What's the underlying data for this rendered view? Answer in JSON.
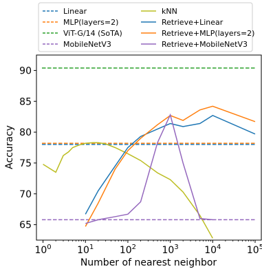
{
  "chart_data": {
    "type": "line",
    "xlabel": "Number of nearest neighbor",
    "ylabel": "Accuracy",
    "xscale": "log",
    "xlim": [
      0.7,
      140000
    ],
    "ylim": [
      62.5,
      92.5
    ],
    "xticks": [
      {
        "value": 1,
        "base": "10",
        "exp": "0"
      },
      {
        "value": 10,
        "base": "10",
        "exp": "1"
      },
      {
        "value": 100,
        "base": "10",
        "exp": "2"
      },
      {
        "value": 1000,
        "base": "10",
        "exp": "3"
      },
      {
        "value": 10000,
        "base": "10",
        "exp": "4"
      },
      {
        "value": 100000,
        "base": "10",
        "exp": "5"
      }
    ],
    "yticks": [
      65,
      70,
      75,
      80,
      85,
      90
    ],
    "legend_placement": "top, above plot, 2 columns",
    "series": [
      {
        "name": "Linear",
        "style": "dashed",
        "color": "#1f77b4",
        "kind": "hline",
        "value": 78.0
      },
      {
        "name": "MLP(layers=2)",
        "style": "dashed",
        "color": "#ff7f0e",
        "kind": "hline",
        "value": 78.2
      },
      {
        "name": "ViT-G/14 (SoTA)",
        "style": "dashed",
        "color": "#2ca02c",
        "kind": "hline",
        "value": 90.4
      },
      {
        "name": "MobileNetV3",
        "style": "dashed",
        "color": "#9467bd",
        "kind": "hline",
        "value": 65.8
      },
      {
        "name": "kNN",
        "style": "solid",
        "color": "#bcbd22",
        "kind": "line",
        "x": [
          1,
          2,
          3,
          4,
          5,
          7,
          10,
          15,
          20,
          30,
          50,
          100,
          200,
          500,
          1000,
          2000,
          5000,
          10000
        ],
        "y": [
          74.8,
          73.5,
          76.2,
          76.8,
          77.5,
          77.9,
          78.2,
          78.3,
          78.3,
          78.1,
          77.5,
          76.5,
          75.4,
          73.4,
          72.3,
          70.3,
          66.5,
          62.8
        ]
      },
      {
        "name": "Retrieve+Linear",
        "style": "solid",
        "color": "#1f77b4",
        "kind": "line",
        "x": [
          10,
          20,
          50,
          100,
          200,
          500,
          1000,
          2000,
          5000,
          10000,
          100000
        ],
        "y": [
          66.7,
          70.5,
          74.5,
          77.5,
          79.3,
          80.5,
          81.4,
          80.9,
          81.4,
          82.7,
          79.7
        ]
      },
      {
        "name": "Retrieve+MLP(layers=2)",
        "style": "solid",
        "color": "#ff7f0e",
        "kind": "line",
        "x": [
          10,
          20,
          50,
          100,
          200,
          500,
          1000,
          2000,
          5000,
          10000,
          100000
        ],
        "y": [
          64.7,
          68.5,
          74.0,
          77.0,
          79.0,
          81.2,
          82.7,
          81.9,
          83.6,
          84.2,
          81.7
        ]
      },
      {
        "name": "Retrieve+MobileNetV3",
        "style": "solid",
        "color": "#9467bd",
        "kind": "line",
        "x": [
          10,
          20,
          50,
          100,
          200,
          500,
          1000,
          2000,
          5000,
          10000
        ],
        "y": [
          65.2,
          65.8,
          66.3,
          66.7,
          68.7,
          78.3,
          82.8,
          75.0,
          66.0,
          65.8
        ]
      }
    ]
  }
}
